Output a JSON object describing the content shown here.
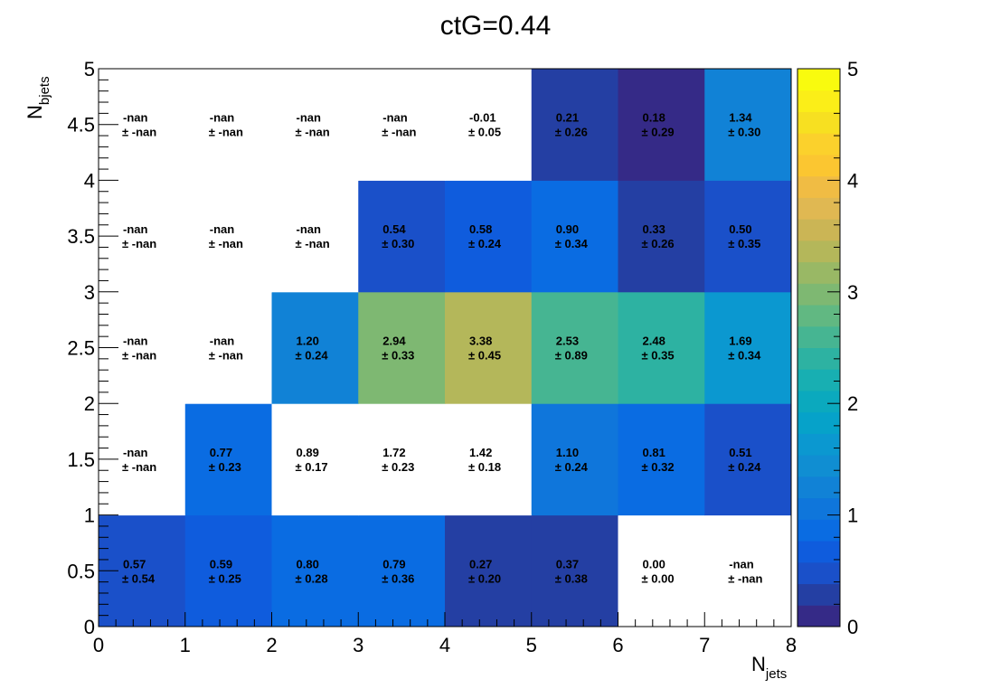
{
  "chart_data": {
    "type": "heatmap",
    "title": "ctG=0.44",
    "xlabel": {
      "main": "N",
      "sub": "jets"
    },
    "ylabel": {
      "main": "N",
      "sub": "bjets"
    },
    "xlim": [
      0,
      8
    ],
    "ylim": [
      0,
      5
    ],
    "x_ticks": [
      "0",
      "1",
      "2",
      "3",
      "4",
      "5",
      "6",
      "7",
      "8"
    ],
    "y_ticks": [
      "0",
      "0.5",
      "1",
      "1.5",
      "2",
      "2.5",
      "3",
      "3.5",
      "4",
      "4.5",
      "5"
    ],
    "z_range": [
      0,
      5
    ],
    "z_ticks": [
      "0",
      "1",
      "2",
      "3",
      "4",
      "5"
    ],
    "palette": [
      "#352a87",
      "#243fa3",
      "#1a50c9",
      "#0f5cdd",
      "#0a6ce2",
      "#0f76db",
      "#1182d6",
      "#108ed2",
      "#0b98d0",
      "#06a2c9",
      "#0ba9be",
      "#18afb2",
      "#2db2a2",
      "#46b592",
      "#61b882",
      "#7eb872",
      "#99b865",
      "#b4b75a",
      "#cbb555",
      "#e0b852",
      "#f0bc44",
      "#fbc631",
      "#fbd12c",
      "#f7e021",
      "#fbee18",
      "#f9fb0e"
    ],
    "empty_color": "#ffffff",
    "cells": [
      {
        "x": 0,
        "y": 0,
        "value": 0.57,
        "label": "0.57",
        "err": "± 0.54"
      },
      {
        "x": 1,
        "y": 0,
        "value": 0.59,
        "label": "0.59",
        "err": "± 0.25"
      },
      {
        "x": 2,
        "y": 0,
        "value": 0.8,
        "label": "0.80",
        "err": "± 0.28"
      },
      {
        "x": 3,
        "y": 0,
        "value": 0.79,
        "label": "0.79",
        "err": "± 0.36"
      },
      {
        "x": 4,
        "y": 0,
        "value": 0.27,
        "label": "0.27",
        "err": "± 0.20"
      },
      {
        "x": 5,
        "y": 0,
        "value": 0.37,
        "label": "0.37",
        "err": "± 0.38"
      },
      {
        "x": 6,
        "y": 0,
        "value": 0.0,
        "label": "0.00",
        "err": "± 0.00",
        "filled": false
      },
      {
        "x": 7,
        "y": 0,
        "value": null,
        "label": "-nan",
        "err": "± -nan",
        "filled": false
      },
      {
        "x": 0,
        "y": 1,
        "value": null,
        "label": "-nan",
        "err": "± -nan",
        "filled": false
      },
      {
        "x": 1,
        "y": 1,
        "value": 0.77,
        "label": "0.77",
        "err": "± 0.23"
      },
      {
        "x": 2,
        "y": 1,
        "value": 0.89,
        "label": "0.89",
        "err": "± 0.17",
        "filled": false
      },
      {
        "x": 3,
        "y": 1,
        "value": 1.72,
        "label": "1.72",
        "err": "± 0.23",
        "filled": false
      },
      {
        "x": 4,
        "y": 1,
        "value": 1.42,
        "label": "1.42",
        "err": "± 0.18",
        "filled": false
      },
      {
        "x": 5,
        "y": 1,
        "value": 1.1,
        "label": "1.10",
        "err": "± 0.24"
      },
      {
        "x": 6,
        "y": 1,
        "value": 0.81,
        "label": "0.81",
        "err": "± 0.32"
      },
      {
        "x": 7,
        "y": 1,
        "value": 0.51,
        "label": "0.51",
        "err": "± 0.24"
      },
      {
        "x": 0,
        "y": 2,
        "value": null,
        "label": "-nan",
        "err": "± -nan",
        "filled": false
      },
      {
        "x": 1,
        "y": 2,
        "value": null,
        "label": "-nan",
        "err": "± -nan",
        "filled": false
      },
      {
        "x": 2,
        "y": 2,
        "value": 1.2,
        "label": "1.20",
        "err": "± 0.24"
      },
      {
        "x": 3,
        "y": 2,
        "value": 2.94,
        "label": "2.94",
        "err": "± 0.33"
      },
      {
        "x": 4,
        "y": 2,
        "value": 3.38,
        "label": "3.38",
        "err": "± 0.45"
      },
      {
        "x": 5,
        "y": 2,
        "value": 2.53,
        "label": "2.53",
        "err": "± 0.89"
      },
      {
        "x": 6,
        "y": 2,
        "value": 2.48,
        "label": "2.48",
        "err": "± 0.35"
      },
      {
        "x": 7,
        "y": 2,
        "value": 1.69,
        "label": "1.69",
        "err": "± 0.34"
      },
      {
        "x": 0,
        "y": 3,
        "value": null,
        "label": "-nan",
        "err": "± -nan",
        "filled": false
      },
      {
        "x": 1,
        "y": 3,
        "value": null,
        "label": "-nan",
        "err": "± -nan",
        "filled": false
      },
      {
        "x": 2,
        "y": 3,
        "value": null,
        "label": "-nan",
        "err": "± -nan",
        "filled": false
      },
      {
        "x": 3,
        "y": 3,
        "value": 0.54,
        "label": "0.54",
        "err": "± 0.30"
      },
      {
        "x": 4,
        "y": 3,
        "value": 0.58,
        "label": "0.58",
        "err": "± 0.24"
      },
      {
        "x": 5,
        "y": 3,
        "value": 0.9,
        "label": "0.90",
        "err": "± 0.34"
      },
      {
        "x": 6,
        "y": 3,
        "value": 0.33,
        "label": "0.33",
        "err": "± 0.26"
      },
      {
        "x": 7,
        "y": 3,
        "value": 0.5,
        "label": "0.50",
        "err": "± 0.35"
      },
      {
        "x": 0,
        "y": 4,
        "value": null,
        "label": "-nan",
        "err": "± -nan",
        "filled": false
      },
      {
        "x": 1,
        "y": 4,
        "value": null,
        "label": "-nan",
        "err": "± -nan",
        "filled": false
      },
      {
        "x": 2,
        "y": 4,
        "value": null,
        "label": "-nan",
        "err": "± -nan",
        "filled": false
      },
      {
        "x": 3,
        "y": 4,
        "value": null,
        "label": "-nan",
        "err": "± -nan",
        "filled": false
      },
      {
        "x": 4,
        "y": 4,
        "value": -0.01,
        "label": "-0.01",
        "err": "± 0.05",
        "filled": false
      },
      {
        "x": 5,
        "y": 4,
        "value": 0.21,
        "label": "0.21",
        "err": "± 0.26"
      },
      {
        "x": 6,
        "y": 4,
        "value": 0.18,
        "label": "0.18",
        "err": "± 0.29"
      },
      {
        "x": 7,
        "y": 4,
        "value": 1.34,
        "label": "1.34",
        "err": "± 0.30"
      }
    ]
  }
}
